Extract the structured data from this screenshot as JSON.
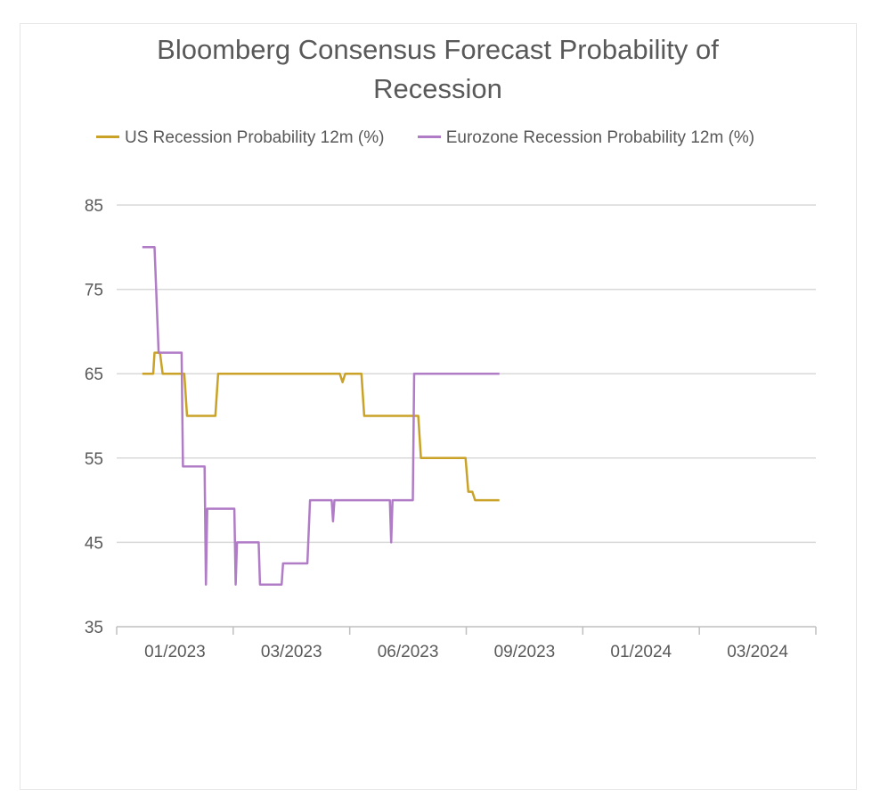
{
  "chart_data": {
    "type": "line",
    "title": "Bloomberg Consensus Forecast Probability of Recession",
    "title_lines": [
      "Bloomberg Consensus Forecast Probability of",
      "Recession"
    ],
    "xlabel": "",
    "ylabel": "",
    "ylim": [
      35,
      85
    ],
    "yticks": [
      35,
      45,
      55,
      65,
      75,
      85
    ],
    "xlim": [
      "2022-12-01",
      "2024-05-01"
    ],
    "xticks": [
      {
        "label": "01/2023",
        "date": "2023-01-01"
      },
      {
        "label": "03/2023",
        "date": "2023-03-01"
      },
      {
        "label": "06/2023",
        "date": "2023-06-01"
      },
      {
        "label": "09/2023",
        "date": "2023-09-01"
      },
      {
        "label": "01/2024",
        "date": "2024-01-01"
      },
      {
        "label": "03/2024",
        "date": "2024-03-01"
      }
    ],
    "grid": "horizontal",
    "legend_position": "top",
    "series": [
      {
        "name": "US Recession Probability 12m (%)",
        "color": "#c9a227",
        "points": [
          [
            "2022-12-20",
            65
          ],
          [
            "2022-12-28",
            65
          ],
          [
            "2022-12-29",
            67.5
          ],
          [
            "2023-01-02",
            67.5
          ],
          [
            "2023-01-04",
            65
          ],
          [
            "2023-01-20",
            65
          ],
          [
            "2023-01-22",
            60
          ],
          [
            "2023-02-12",
            60
          ],
          [
            "2023-02-14",
            65
          ],
          [
            "2023-05-15",
            65
          ],
          [
            "2023-05-17",
            64
          ],
          [
            "2023-05-19",
            65
          ],
          [
            "2023-05-31",
            65
          ],
          [
            "2023-06-02",
            60
          ],
          [
            "2023-07-12",
            60
          ],
          [
            "2023-07-14",
            55
          ],
          [
            "2023-08-16",
            55
          ],
          [
            "2023-08-18",
            51
          ],
          [
            "2023-08-21",
            51
          ],
          [
            "2023-08-23",
            50
          ],
          [
            "2023-09-10",
            50
          ]
        ]
      },
      {
        "name": "Eurozone Recession Probability 12m (%)",
        "color": "#b07cc6",
        "points": [
          [
            "2022-12-20",
            80
          ],
          [
            "2022-12-29",
            80
          ],
          [
            "2023-01-01",
            67.5
          ],
          [
            "2023-01-18",
            67.5
          ],
          [
            "2023-01-19",
            54
          ],
          [
            "2023-02-04",
            54
          ],
          [
            "2023-02-05",
            40
          ],
          [
            "2023-02-06",
            49
          ],
          [
            "2023-02-26",
            49
          ],
          [
            "2023-02-27",
            40
          ],
          [
            "2023-02-28",
            45
          ],
          [
            "2023-03-16",
            45
          ],
          [
            "2023-03-17",
            40
          ],
          [
            "2023-04-02",
            40
          ],
          [
            "2023-04-03",
            42.5
          ],
          [
            "2023-04-21",
            42.5
          ],
          [
            "2023-04-23",
            50
          ],
          [
            "2023-05-09",
            50
          ],
          [
            "2023-05-10",
            47.5
          ],
          [
            "2023-05-11",
            50
          ],
          [
            "2023-06-21",
            50
          ],
          [
            "2023-06-22",
            45
          ],
          [
            "2023-06-23",
            50
          ],
          [
            "2023-07-08",
            50
          ],
          [
            "2023-07-09",
            65
          ],
          [
            "2023-09-10",
            65
          ]
        ]
      }
    ]
  }
}
